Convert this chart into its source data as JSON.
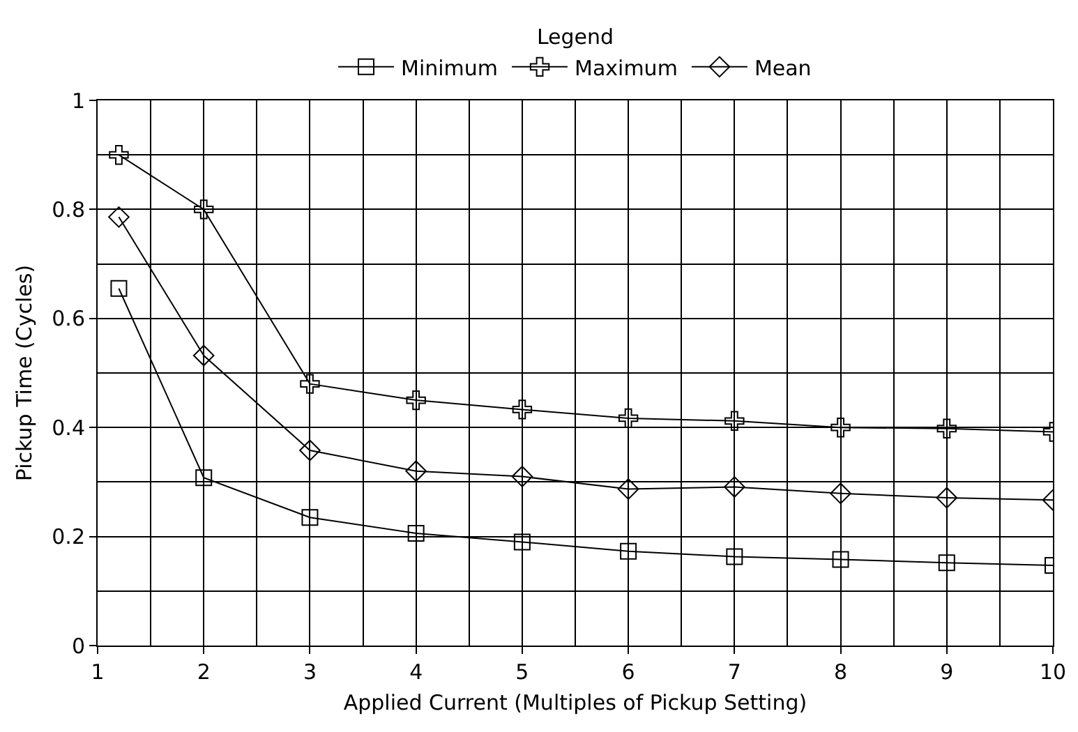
{
  "chart_data": {
    "type": "line",
    "xlabel": "Applied Current (Multiples of Pickup Setting)",
    "ylabel": "Pickup Time (Cycles)",
    "legend_title": "Legend",
    "legend": "top",
    "grid": true,
    "x": [
      1.2,
      2,
      3,
      4,
      5,
      6,
      7,
      8,
      9,
      10
    ],
    "xlim": [
      1,
      10
    ],
    "xticks": [
      1,
      2,
      3,
      4,
      5,
      6,
      7,
      8,
      9,
      10
    ],
    "ylim": [
      0,
      1
    ],
    "yticks": [
      0,
      0.2,
      0.4,
      0.6,
      0.8,
      1
    ],
    "series": [
      {
        "name": "Minimum",
        "color": "#000000",
        "marker": "square",
        "values": [
          0.655,
          0.308,
          0.235,
          0.206,
          0.19,
          0.173,
          0.163,
          0.158,
          0.152,
          0.147
        ]
      },
      {
        "name": "Maximum",
        "color": "#000000",
        "marker": "cross",
        "values": [
          0.9,
          0.8,
          0.48,
          0.45,
          0.433,
          0.417,
          0.412,
          0.4,
          0.398,
          0.392
        ]
      },
      {
        "name": "Mean",
        "color": "#000000",
        "marker": "diamond",
        "values": [
          0.786,
          0.532,
          0.358,
          0.32,
          0.31,
          0.287,
          0.291,
          0.279,
          0.271,
          0.267
        ]
      }
    ]
  }
}
